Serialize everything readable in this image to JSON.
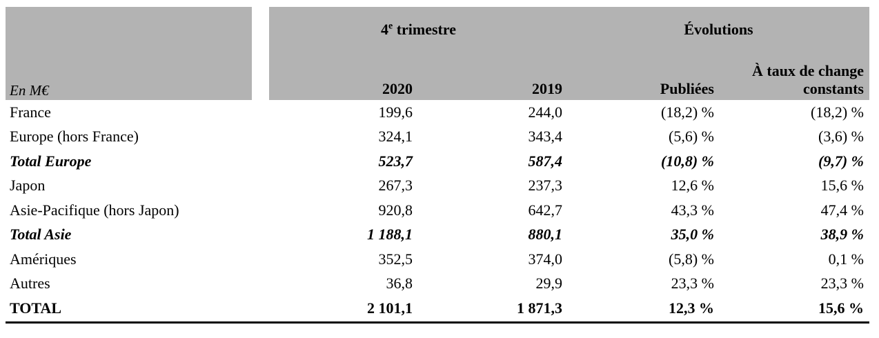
{
  "unit_label": "En M€",
  "header": {
    "group_q4_base": "4",
    "group_q4_sup": "e",
    "group_q4_rest": " trimestre",
    "group_evolutions": "Évolutions",
    "col_2020": "2020",
    "col_2019": "2019",
    "col_published": "Publiées",
    "col_constant": "À taux de change constants"
  },
  "rows": [
    {
      "label": "France",
      "y2020": "199,6",
      "y2019": "244,0",
      "published": "(18,2) %",
      "constant": "(18,2) %"
    },
    {
      "label": "Europe (hors France)",
      "y2020": "324,1",
      "y2019": "343,4",
      "published": "(5,6) %",
      "constant": "(3,6) %"
    },
    {
      "label": "Total Europe",
      "y2020": "523,7",
      "y2019": "587,4",
      "published": "(10,8) %",
      "constant": "(9,7) %"
    },
    {
      "label": "Japon",
      "y2020": "267,3",
      "y2019": "237,3",
      "published": "12,6 %",
      "constant": "15,6 %"
    },
    {
      "label": "Asie-Pacifique (hors Japon)",
      "y2020": "920,8",
      "y2019": "642,7",
      "published": "43,3 %",
      "constant": "47,4 %"
    },
    {
      "label": "Total Asie",
      "y2020": "1 188,1",
      "y2019": "880,1",
      "published": "35,0 %",
      "constant": "38,9 %"
    },
    {
      "label": "Amériques",
      "y2020": "352,5",
      "y2019": "374,0",
      "published": "(5,8) %",
      "constant": "0,1 %"
    },
    {
      "label": "Autres",
      "y2020": "36,8",
      "y2019": "29,9",
      "published": "23,3 %",
      "constant": "23,3 %"
    },
    {
      "label": "TOTAL",
      "y2020": "2 101,1",
      "y2019": "1 871,3",
      "published": "12,3 %",
      "constant": "15,6 %"
    }
  ],
  "colors": {
    "header_bg": "#b3b3b3",
    "rule": "#000000"
  }
}
